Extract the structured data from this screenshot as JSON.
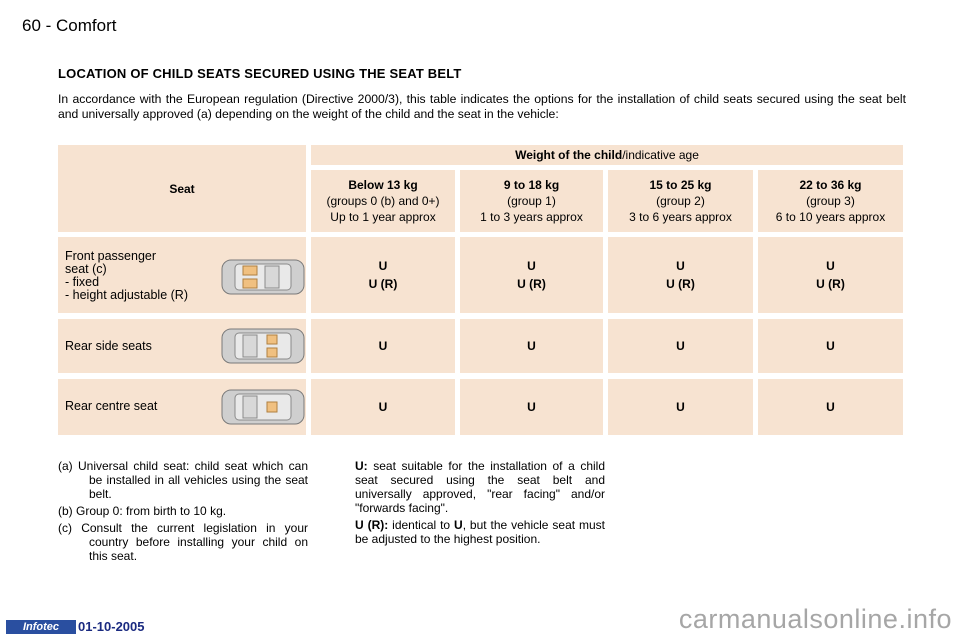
{
  "header": {
    "page_number": "60",
    "separator": " - ",
    "section": "Comfort"
  },
  "title": "LOCATION OF CHILD SEATS SECURED USING THE SEAT BELT",
  "intro": "In accordance with the European regulation (Directive 2000/3), this table indicates the options for the installation of child seats secured using the seat belt and universally approved (a) depending on the weight of the child and the seat in the vehicle:",
  "table": {
    "seat_header": "Seat",
    "weight_header_bold": "Weight of the child",
    "weight_header_rest": "/indicative age",
    "columns": [
      {
        "weight": "Below 13 kg",
        "group": "(groups 0 (b) and 0+)",
        "age": "Up to 1 year approx"
      },
      {
        "weight": "9 to 18 kg",
        "group": "(group 1)",
        "age": "1 to 3 years approx"
      },
      {
        "weight": "15 to 25 kg",
        "group": "(group 2)",
        "age": "3 to 6 years approx"
      },
      {
        "weight": "22 to 36 kg",
        "group": "(group 3)",
        "age": "6 to 10 years approx"
      }
    ],
    "rows": [
      {
        "label_lines": [
          "Front passenger",
          "seat (c)",
          "- fixed",
          "- height adjustable (R)"
        ],
        "cells": [
          [
            "U",
            "U (R)"
          ],
          [
            "U",
            "U (R)"
          ],
          [
            "U",
            "U (R)"
          ],
          [
            "U",
            "U (R)"
          ]
        ]
      },
      {
        "label_lines": [
          "Rear side seats"
        ],
        "cells": [
          [
            "U"
          ],
          [
            "U"
          ],
          [
            "U"
          ],
          [
            "U"
          ]
        ]
      },
      {
        "label_lines": [
          "Rear centre seat"
        ],
        "cells": [
          [
            "U"
          ],
          [
            "U"
          ],
          [
            "U"
          ],
          [
            "U"
          ]
        ]
      }
    ]
  },
  "footnotes": {
    "a": "(a)  Universal child seat: child seat which can be installed in all vehicles using the seat belt.",
    "b": "(b)  Group 0: from birth to 10 kg.",
    "c": "(c)  Consult the current legislation in your country before installing your child on this seat."
  },
  "legend": {
    "u_key": "U:",
    "u_text": " seat suitable for the installation of a child seat secured using the seat belt and universally approved, \"rear facing\" and/or \"forwards facing\".",
    "ur_key": "U (R):",
    "ur_text_1": " identical to ",
    "ur_text_u": "U",
    "ur_text_2": ", but the vehicle seat must be adjusted to the highest position."
  },
  "footer": {
    "badge": "Infotec",
    "date": "01-10-2005",
    "watermark": "carmanualsonline.info"
  },
  "colors": {
    "cell_background": "#f7e3d1",
    "badge": "#2a4fa0"
  },
  "icons": [
    "car-seat-diagram-icon"
  ]
}
